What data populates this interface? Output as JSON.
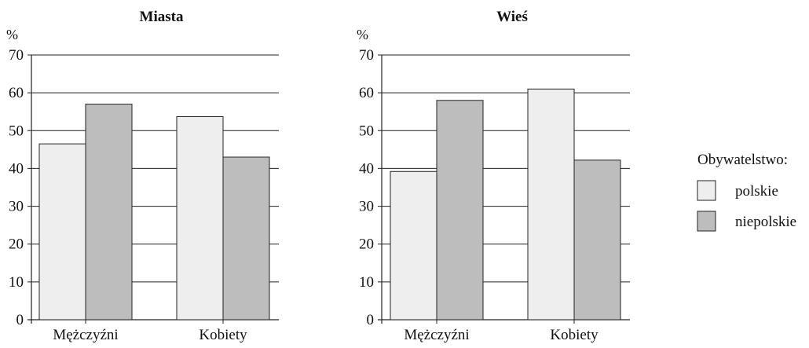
{
  "chart_data": [
    {
      "type": "bar",
      "title": "Miasta",
      "ylabel": "%",
      "ylim": [
        0,
        70
      ],
      "yticks": [
        0,
        10,
        20,
        30,
        40,
        50,
        60,
        70
      ],
      "grid": true,
      "categories": [
        "Mężczyźni",
        "Kobiety"
      ],
      "series": [
        {
          "name": "polskie",
          "values": [
            46.5,
            53.7
          ]
        },
        {
          "name": "niepolskie",
          "values": [
            57,
            43
          ]
        }
      ]
    },
    {
      "type": "bar",
      "title": "Wieś",
      "ylabel": "%",
      "ylim": [
        0,
        70
      ],
      "yticks": [
        0,
        10,
        20,
        30,
        40,
        50,
        60,
        70
      ],
      "grid": true,
      "categories": [
        "Mężczyźni",
        "Kobiety"
      ],
      "series": [
        {
          "name": "polskie",
          "values": [
            39.2,
            61
          ]
        },
        {
          "name": "niepolskie",
          "values": [
            58,
            42.2
          ]
        }
      ]
    }
  ],
  "legend": {
    "title": "Obywatelstwo:",
    "placement": "right",
    "items": [
      {
        "label": "polskie",
        "color": "#eeeeee"
      },
      {
        "label": "niepolskie",
        "color": "#bdbdbd"
      }
    ]
  }
}
